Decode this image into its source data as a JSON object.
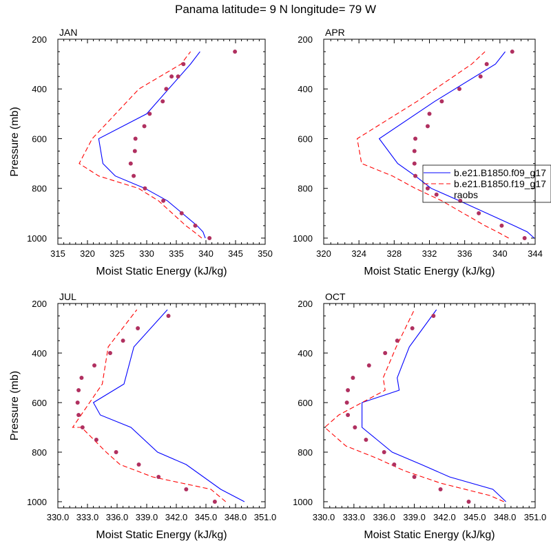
{
  "figure": {
    "title": "Panama  latitude= 9 N longitude= 79 W"
  },
  "colors": {
    "model_f09": "#0000ff",
    "model_f19": "#ff0000",
    "raobs": "#b03060"
  },
  "chart_data": [
    {
      "type": "line",
      "panel_label": "JAN",
      "xlabel": "Moist Static Energy (kJ/kg)",
      "ylabel": "Pressure (mb)",
      "xlim": [
        315,
        350
      ],
      "ylim": [
        200,
        1025
      ],
      "y_inverted": true,
      "xticks": [
        315,
        320,
        325,
        330,
        335,
        340,
        345,
        350
      ],
      "xtick_labels": [
        "315",
        "320",
        "325",
        "330",
        "335",
        "340",
        "345",
        "350"
      ],
      "yticks": [
        200,
        400,
        600,
        800,
        1000
      ],
      "ytick_labels": [
        "200",
        "400",
        "600",
        "800",
        "1000"
      ],
      "series": [
        {
          "style": "solid",
          "color": "#0000ff",
          "x": [
            339.9,
            339.5,
            338.5,
            333.5,
            329.7,
            324.7,
            322.6,
            321.9,
            330.0,
            337.4,
            339.0
          ],
          "y": [
            1000,
            975,
            950,
            850,
            800,
            750,
            700,
            600,
            500,
            300,
            250
          ]
        },
        {
          "style": "dashed",
          "color": "#ff0000",
          "x": [
            339.3,
            338.0,
            336.6,
            332.0,
            328.6,
            321.9,
            318.6,
            320.8,
            328.7,
            335.8,
            337.4
          ],
          "y": [
            1000,
            975,
            950,
            850,
            800,
            750,
            700,
            600,
            400,
            300,
            250
          ]
        },
        {
          "style": "markers",
          "color": "#b03060",
          "x": [
            340.6,
            338.2,
            335.9,
            332.8,
            329.7,
            327.8,
            327.3,
            328.0,
            328.1,
            329.6,
            330.5,
            332.7,
            333.3,
            334.2,
            335.3,
            336.2,
            344.9
          ],
          "y": [
            1000,
            950,
            900,
            850,
            800,
            750,
            700,
            650,
            600,
            550,
            500,
            450,
            400,
            350,
            350,
            300,
            250
          ]
        }
      ]
    },
    {
      "type": "line",
      "panel_label": "APR",
      "xlabel": "Moist Static Energy (kJ/kg)",
      "ylabel": "",
      "xlim": [
        320,
        344
      ],
      "ylim": [
        200,
        1025
      ],
      "y_inverted": true,
      "xticks": [
        320,
        324,
        328,
        332,
        336,
        340,
        344
      ],
      "xtick_labels": [
        "320",
        "324",
        "328",
        "332",
        "336",
        "340",
        "344"
      ],
      "yticks": [
        200,
        400,
        600,
        800,
        1000
      ],
      "ytick_labels": [
        "200",
        "400",
        "600",
        "800",
        "1000"
      ],
      "legend": {
        "position": "middle-right",
        "entries": [
          "b.e21.B1850.f09_g17",
          "b.e21.B1850.f19_g17",
          "raobs"
        ]
      },
      "series": [
        {
          "name": "b.e21.B1850.f09_g17",
          "style": "solid",
          "color": "#0000ff",
          "x": [
            343.9,
            343.1,
            341.6,
            335.4,
            332.2,
            330.4,
            328.4,
            326.3,
            332.6,
            339.5,
            340.6
          ],
          "y": [
            1000,
            975,
            950,
            850,
            800,
            750,
            700,
            600,
            450,
            300,
            250
          ]
        },
        {
          "name": "b.e21.B1850.f19_g17",
          "style": "dashed",
          "color": "#ff0000",
          "x": [
            341.0,
            339.7,
            338.3,
            333.4,
            330.4,
            327.8,
            324.3,
            323.8,
            330.6,
            336.8,
            338.3
          ],
          "y": [
            1000,
            975,
            950,
            850,
            800,
            750,
            700,
            600,
            450,
            300,
            250
          ]
        },
        {
          "name": "raobs",
          "style": "markers",
          "color": "#b03060",
          "x": [
            342.8,
            340.2,
            337.6,
            335.5,
            332.8,
            331.8,
            330.4,
            330.3,
            330.3,
            330.4,
            331.8,
            332.0,
            333.4,
            335.4,
            337.8,
            338.5,
            341.4
          ],
          "y": [
            1000,
            950,
            900,
            850,
            825,
            800,
            750,
            700,
            650,
            600,
            550,
            500,
            450,
            400,
            350,
            300,
            250
          ]
        }
      ]
    },
    {
      "type": "line",
      "panel_label": "JUL",
      "xlabel": "Moist Static Energy (kJ/kg)",
      "ylabel": "Pressure (mb)",
      "xlim": [
        330,
        351
      ],
      "ylim": [
        200,
        1025
      ],
      "y_inverted": true,
      "xticks": [
        330,
        333,
        336,
        339,
        342,
        345,
        348,
        351
      ],
      "xtick_labels": [
        "330.0",
        "333.0",
        "336.0",
        "339.0",
        "342.0",
        "345.0",
        "348.0",
        "351.0"
      ],
      "yticks": [
        200,
        400,
        600,
        800,
        1000
      ],
      "ytick_labels": [
        "200",
        "400",
        "600",
        "800",
        "1000"
      ],
      "series": [
        {
          "style": "solid",
          "color": "#0000ff",
          "x": [
            348.9,
            346.5,
            343.0,
            340.1,
            337.4,
            334.3,
            333.6,
            336.7,
            337.7,
            341.1
          ],
          "y": [
            1000,
            950,
            850,
            800,
            700,
            650,
            600,
            525,
            375,
            225
          ]
        },
        {
          "style": "dashed",
          "color": "#ff0000",
          "x": [
            347.0,
            345.5,
            339.6,
            336.3,
            334.9,
            332.4,
            331.5,
            334.5,
            335.1,
            338.0
          ],
          "y": [
            1000,
            950,
            900,
            850,
            800,
            700,
            700,
            525,
            375,
            225
          ]
        },
        {
          "style": "markers",
          "color": "#b03060",
          "x": [
            345.9,
            343.0,
            340.2,
            338.2,
            335.9,
            333.9,
            332.5,
            332.1,
            332.0,
            332.1,
            332.4,
            333.7,
            335.3,
            336.6,
            338.1,
            341.2
          ],
          "y": [
            1000,
            950,
            900,
            850,
            800,
            750,
            700,
            650,
            600,
            550,
            500,
            450,
            400,
            350,
            300,
            250
          ]
        }
      ]
    },
    {
      "type": "line",
      "panel_label": "OCT",
      "xlabel": "Moist Static Energy (kJ/kg)",
      "ylabel": "",
      "xlim": [
        330,
        351
      ],
      "ylim": [
        200,
        1025
      ],
      "y_inverted": true,
      "xticks": [
        330,
        333,
        336,
        339,
        342,
        345,
        348,
        351
      ],
      "xtick_labels": [
        "330.0",
        "333.0",
        "336.0",
        "339.0",
        "342.0",
        "345.0",
        "348.0",
        "351.0"
      ],
      "yticks": [
        200,
        400,
        600,
        800,
        1000
      ],
      "ytick_labels": [
        "200",
        "400",
        "600",
        "800",
        "1000"
      ],
      "series": [
        {
          "style": "solid",
          "color": "#0000ff",
          "x": [
            348.1,
            346.8,
            342.5,
            339.7,
            336.8,
            335.3,
            333.8,
            333.8,
            337.5,
            337.3,
            338.5,
            341.2
          ],
          "y": [
            1000,
            950,
            900,
            850,
            800,
            750,
            700,
            600,
            550,
            500,
            375,
            225
          ]
        },
        {
          "style": "dashed",
          "color": "#ff0000",
          "x": [
            347.9,
            346.5,
            341.6,
            338.0,
            335.3,
            332.2,
            330.1,
            331.5,
            336.1,
            335.9,
            337.2,
            339.0
          ],
          "y": [
            1000,
            975,
            925,
            875,
            825,
            775,
            700,
            650,
            550,
            500,
            375,
            225
          ]
        },
        {
          "style": "markers",
          "color": "#b03060",
          "x": [
            344.4,
            341.6,
            339.0,
            337.0,
            336.0,
            334.2,
            333.1,
            332.4,
            332.3,
            332.4,
            332.9,
            334.5,
            336.1,
            337.3,
            338.8,
            340.9
          ],
          "y": [
            1000,
            950,
            900,
            850,
            800,
            750,
            700,
            650,
            600,
            550,
            500,
            450,
            400,
            350,
            300,
            250
          ]
        }
      ]
    }
  ]
}
